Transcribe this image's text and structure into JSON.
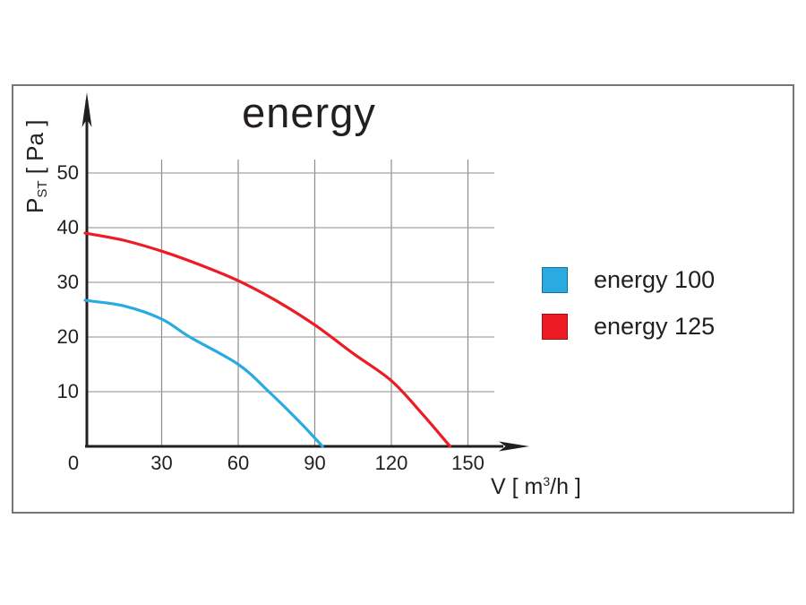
{
  "page": {
    "background": "#ffffff",
    "frame_border_color": "#757575"
  },
  "chart": {
    "title": "energy"
  },
  "axes": {
    "y_label_main": "P",
    "y_label_sub": "ST",
    "y_label_unit": " [ Pa ]",
    "x_label_prefix": "V [ m",
    "x_label_sup": "3",
    "x_label_suffix": "/h ]"
  },
  "legend": {
    "items": [
      {
        "label": "energy  100",
        "color": "#29abe2"
      },
      {
        "label": "energy  125",
        "color": "#ed1c24"
      }
    ]
  },
  "chart_data": {
    "type": "line",
    "title": "energy",
    "xlabel": "V [ m3/h ]",
    "ylabel": "PST [ Pa ]",
    "xlim": [
      0,
      165
    ],
    "ylim": [
      0,
      57
    ],
    "grid": true,
    "legend_position": "right",
    "x_ticks": [
      0,
      30,
      60,
      90,
      120,
      150
    ],
    "y_ticks": [
      0,
      10,
      20,
      30,
      40,
      50
    ],
    "x_tick_labels": [
      "0",
      "30",
      "60",
      "90",
      "120",
      "150"
    ],
    "y_tick_labels": [
      "10",
      "20",
      "30",
      "40",
      "50"
    ],
    "grid_x_values": [
      30,
      60,
      90,
      120,
      150
    ],
    "grid_y_values": [
      10,
      20,
      30,
      40,
      50
    ],
    "axis_color": "#231f20",
    "grid_color_vertical": "#8c8c8c",
    "grid_color_horizontal": "#a3a3a3",
    "series": [
      {
        "name": "energy 100",
        "color": "#29abe2",
        "points": [
          [
            0,
            26.7
          ],
          [
            15,
            25.7
          ],
          [
            30,
            23.3
          ],
          [
            41,
            20
          ],
          [
            60,
            15
          ],
          [
            72,
            10
          ],
          [
            84,
            4.5
          ],
          [
            93,
            0
          ]
        ]
      },
      {
        "name": "energy 125",
        "color": "#ed1c24",
        "points": [
          [
            0,
            39
          ],
          [
            15,
            37.7
          ],
          [
            30,
            35.7
          ],
          [
            45,
            33.2
          ],
          [
            60,
            30.3
          ],
          [
            75,
            26.6
          ],
          [
            90,
            22.2
          ],
          [
            105,
            17
          ],
          [
            120,
            12
          ],
          [
            132,
            6
          ],
          [
            143,
            0
          ]
        ]
      }
    ]
  }
}
